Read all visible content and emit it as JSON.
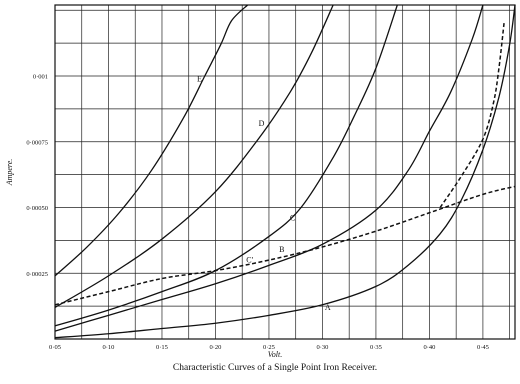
{
  "chart_data": {
    "type": "line",
    "title": "Characteristic Curves of a Single Point Iron Receiver.",
    "xlabel": "Volt.",
    "ylabel": "Ampere.",
    "xlim": [
      0.05,
      0.48
    ],
    "ylim": [
      0,
      0.00127
    ],
    "grid": true,
    "x_ticks": [
      0.05,
      0.1,
      0.15,
      0.2,
      0.25,
      0.3,
      0.35,
      0.4,
      0.45
    ],
    "x_tick_labels": [
      "0·05",
      "0·10",
      "0·15",
      "0·20",
      "0·25",
      "0·30",
      "0·35",
      "0·40",
      "0·45"
    ],
    "y_ticks": [
      0.00025,
      0.0005,
      0.00075,
      0.001
    ],
    "y_tick_labels": [
      "0·00025",
      "0·00050",
      "0·00075",
      "0·001"
    ],
    "series": [
      {
        "name": "E",
        "style": "solid",
        "x": [
          0.05,
          0.08,
          0.11,
          0.14,
          0.17,
          0.19,
          0.205,
          0.215,
          0.23
        ],
        "y": [
          0.00024,
          0.00035,
          0.00048,
          0.00064,
          0.00084,
          0.001,
          0.00112,
          0.00121,
          0.00127
        ]
      },
      {
        "name": "D",
        "style": "solid",
        "x": [
          0.05,
          0.1,
          0.15,
          0.2,
          0.24,
          0.27,
          0.29,
          0.31
        ],
        "y": [
          0.00012,
          0.00024,
          0.00038,
          0.00056,
          0.00076,
          0.00094,
          0.00109,
          0.00127
        ]
      },
      {
        "name": "C",
        "style": "solid",
        "x": [
          0.05,
          0.1,
          0.15,
          0.2,
          0.25,
          0.28,
          0.31,
          0.33,
          0.35,
          0.37
        ],
        "y": [
          5e-05,
          0.00011,
          0.00018,
          0.00026,
          0.00039,
          0.0005,
          0.00069,
          0.00085,
          0.00103,
          0.00127
        ]
      },
      {
        "name": "C'",
        "style": "solid",
        "x": [
          0.05,
          0.1,
          0.15,
          0.2,
          0.25,
          0.3,
          0.35,
          0.38,
          0.4,
          0.42,
          0.44,
          0.45
        ],
        "y": [
          3e-05,
          9e-05,
          0.00015,
          0.00021,
          0.00028,
          0.00036,
          0.00049,
          0.00064,
          0.00079,
          0.00094,
          0.00114,
          0.00127
        ]
      },
      {
        "name": "A",
        "style": "solid",
        "x": [
          0.05,
          0.1,
          0.15,
          0.2,
          0.25,
          0.3,
          0.35,
          0.38,
          0.41,
          0.43,
          0.45,
          0.465,
          0.475,
          0.48
        ],
        "y": [
          5e-06,
          2e-05,
          4e-05,
          6e-05,
          9e-05,
          0.00013,
          0.0002,
          0.00028,
          0.0004,
          0.00053,
          0.00072,
          0.00092,
          0.00112,
          0.00127
        ]
      },
      {
        "name": "B",
        "style": "dashed",
        "x": [
          0.05,
          0.1,
          0.15,
          0.2,
          0.25,
          0.3,
          0.35,
          0.4,
          0.45,
          0.48
        ],
        "y": [
          0.00013,
          0.00018,
          0.00023,
          0.00026,
          0.0003,
          0.00035,
          0.00041,
          0.00048,
          0.00055,
          0.00058
        ]
      },
      {
        "name": "",
        "style": "dashed",
        "x": [
          0.41,
          0.43,
          0.45,
          0.46,
          0.465,
          0.47
        ],
        "y": [
          0.0005,
          0.00062,
          0.00076,
          0.0009,
          0.00103,
          0.00121
        ]
      }
    ],
    "annotations": [
      {
        "text": "E",
        "x": 0.185,
        "y": 0.00098
      },
      {
        "text": "D",
        "x": 0.243,
        "y": 0.00081
      },
      {
        "text": "C",
        "x": 0.272,
        "y": 0.00045
      },
      {
        "text": "B",
        "x": 0.262,
        "y": 0.00033
      },
      {
        "text": "C'",
        "x": 0.232,
        "y": 0.00029
      },
      {
        "text": "A",
        "x": 0.305,
        "y": 0.00011
      }
    ]
  }
}
